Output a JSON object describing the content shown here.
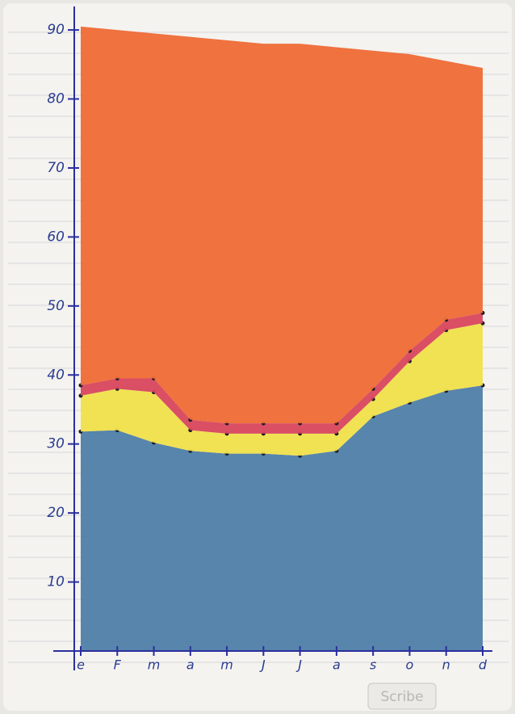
{
  "chart_data": {
    "type": "stacked_area",
    "categories": [
      "e",
      "F",
      "m",
      "a",
      "m",
      "J",
      "J",
      "a",
      "s",
      "o",
      "n",
      "d"
    ],
    "series": [
      {
        "name": null,
        "color": "#4f7ea8",
        "values": [
          31.8,
          32,
          30.2,
          29,
          28.6,
          28.6,
          28.3,
          29,
          34,
          36,
          37.7,
          38.5
        ]
      },
      {
        "name": null,
        "color": "#f0e04a",
        "values": [
          5.2,
          6,
          7.3,
          3,
          2.9,
          2.9,
          3.2,
          2.5,
          2.5,
          6,
          8.8,
          9
        ]
      },
      {
        "name": null,
        "color": "#d8465c",
        "values": [
          1.5,
          1.5,
          2,
          1.5,
          1.5,
          1.5,
          1.5,
          1.5,
          1.5,
          1.5,
          1.5,
          1.5
        ]
      },
      {
        "name": null,
        "color": "#ee6a35",
        "values": [
          52,
          50.5,
          50,
          55.5,
          55.5,
          55,
          55,
          54.5,
          49,
          43,
          37.5,
          35.5
        ]
      }
    ],
    "ylim": [
      0,
      92
    ],
    "yticks": [
      10,
      20,
      30,
      40,
      50,
      60,
      70,
      80,
      90
    ],
    "watermark": "Scribe"
  }
}
